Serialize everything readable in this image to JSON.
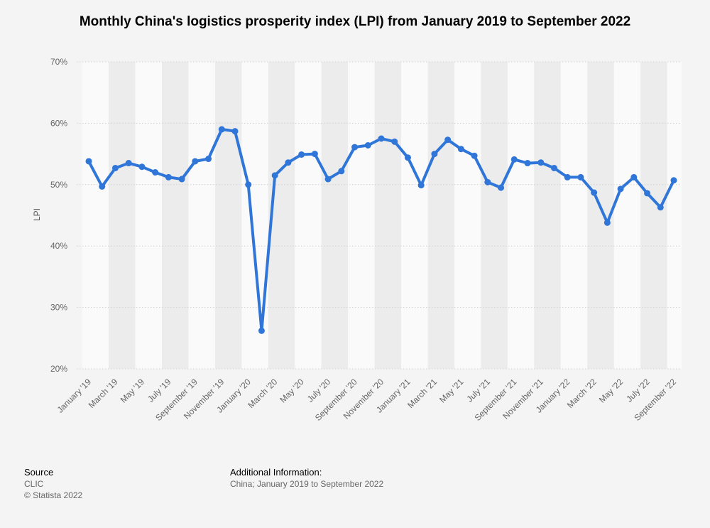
{
  "title": "Monthly China's logistics prosperity index (LPI) from January 2019 to September 2022",
  "source": {
    "heading": "Source",
    "name": "CLIC",
    "copyright": "© Statista 2022"
  },
  "additional_info": {
    "heading": "Additional Information:",
    "text": "China; January 2019 to September 2022"
  },
  "colors": {
    "line": "#2f76d8",
    "band": "#ececec",
    "grid": "#cfcfcf",
    "background": "#f4f4f4"
  },
  "chart_data": {
    "type": "line",
    "title": "Monthly China's logistics prosperity index (LPI) from January 2019 to September 2022",
    "xlabel": "",
    "ylabel": "LPI",
    "ylim": [
      20,
      70
    ],
    "y_ticks": [
      "20%",
      "30%",
      "40%",
      "50%",
      "60%",
      "70%"
    ],
    "y_tick_values": [
      20,
      30,
      40,
      50,
      60,
      70
    ],
    "grid": true,
    "categories": [
      "January '19",
      "February '19",
      "March '19",
      "April '19",
      "May '19",
      "June '19",
      "July '19",
      "August '19",
      "September '19",
      "October '19",
      "November '19",
      "December '19",
      "January '20",
      "February '20",
      "March '20",
      "April '20",
      "May '20",
      "June '20",
      "July '20",
      "August '20",
      "September '20",
      "October '20",
      "November '20",
      "December '20",
      "January '21",
      "February '21",
      "March '21",
      "April '21",
      "May '21",
      "June '21",
      "July '21",
      "August '21",
      "September '21",
      "October '21",
      "November '21",
      "December '21",
      "January '22",
      "February '22",
      "March '22",
      "April '22",
      "May '22",
      "June '22",
      "July '22",
      "August '22",
      "September '22"
    ],
    "x_tick_labels": [
      "January '19",
      "March '19",
      "May '19",
      "July '19",
      "September '19",
      "November '19",
      "January '20",
      "March '20",
      "May '20",
      "July '20",
      "September '20",
      "November '20",
      "January '21",
      "March '21",
      "May '21",
      "July '21",
      "September '21",
      "November '21",
      "January '22",
      "March '22",
      "May '22",
      "July '22",
      "September '22"
    ],
    "series": [
      {
        "name": "LPI",
        "values": [
          53.8,
          49.7,
          52.7,
          53.5,
          52.9,
          52.0,
          51.2,
          50.9,
          53.8,
          54.2,
          59.0,
          58.7,
          50.0,
          26.2,
          51.5,
          53.6,
          54.9,
          55.0,
          50.9,
          52.2,
          56.1,
          56.4,
          57.5,
          57.0,
          54.4,
          49.9,
          55.0,
          57.3,
          55.8,
          54.7,
          50.4,
          49.5,
          54.1,
          53.5,
          53.6,
          52.7,
          51.2,
          51.2,
          48.7,
          43.8,
          49.3,
          51.2,
          48.6,
          46.3,
          50.7
        ]
      }
    ]
  }
}
